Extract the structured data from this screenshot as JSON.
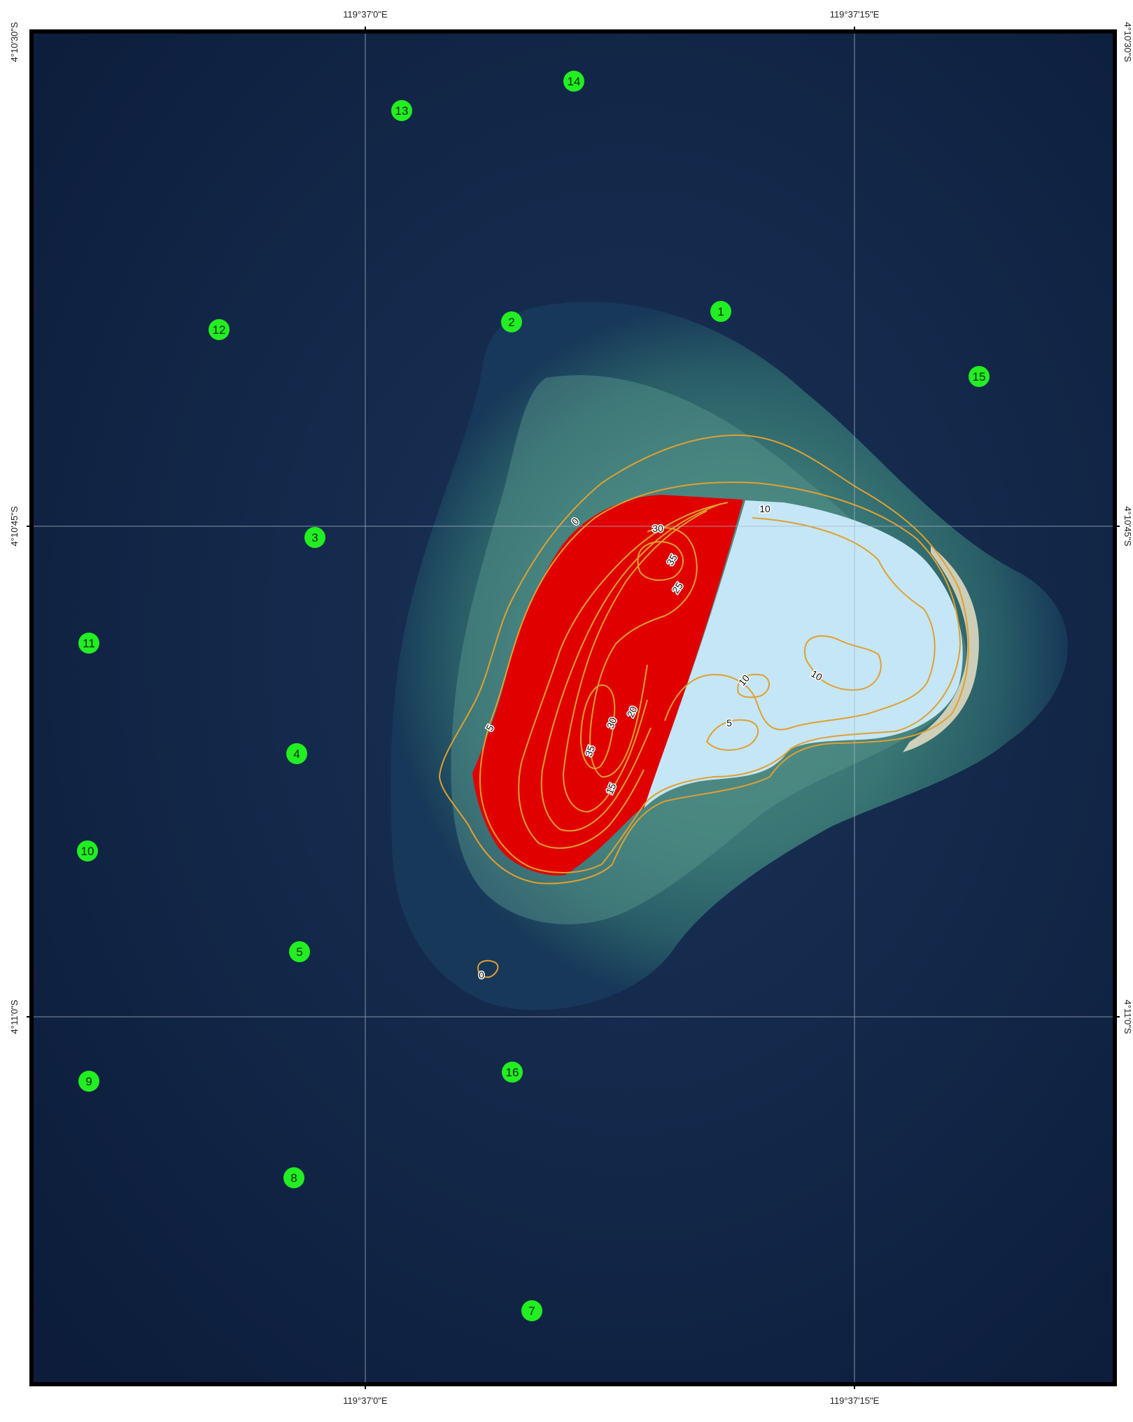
{
  "graticule": {
    "top_lon_labels": [
      "119°37'0\"E",
      "119°37'15\"E"
    ],
    "bottom_lon_labels": [
      "119°37'0\"E",
      "119°37'15\"E"
    ],
    "left_lat_labels": [
      "4°10'30\"S",
      "4°10'45\"S",
      "4°11'0\"S"
    ],
    "right_lat_labels": [
      "4°10'30\"S",
      "4°10'45\"S",
      "4°11'0\"S"
    ]
  },
  "contour_labels": {
    "c0a": "0",
    "c0b": "0",
    "c5a": "5",
    "c5b": "5",
    "c10a": "10",
    "c10b": "10",
    "c10c": "10",
    "c15": "15",
    "c20": "20",
    "c25": "25",
    "c30a": "30",
    "c30b": "30",
    "c35a": "35",
    "c35b": "35"
  },
  "stations": [
    "1",
    "2",
    "3",
    "4",
    "5",
    "7",
    "8",
    "9",
    "10",
    "11",
    "12",
    "13",
    "14",
    "15",
    "16"
  ],
  "colors": {
    "sea_deep": "#0f2142",
    "reef": "#2e6a6e",
    "high_zone": "#e00000",
    "low_zone": "#c5e6f7",
    "contour": "#e0a030",
    "station_fill": "#22ee22"
  }
}
